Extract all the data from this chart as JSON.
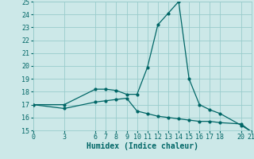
{
  "xlabel": "Humidex (Indice chaleur)",
  "background_color": "#cce8e8",
  "line_color": "#006666",
  "grid_color": "#99cccc",
  "xlim": [
    0,
    21
  ],
  "ylim": [
    15,
    25
  ],
  "yticks": [
    15,
    16,
    17,
    18,
    19,
    20,
    21,
    22,
    23,
    24,
    25
  ],
  "xticks": [
    0,
    3,
    6,
    7,
    8,
    9,
    10,
    11,
    12,
    13,
    14,
    15,
    16,
    17,
    18,
    20,
    21
  ],
  "series1_x": [
    0,
    3,
    6,
    7,
    8,
    9,
    10,
    11,
    12,
    13,
    14,
    15,
    16,
    17,
    18,
    20,
    21
  ],
  "series1_y": [
    17.0,
    17.0,
    18.2,
    18.2,
    18.1,
    17.8,
    17.8,
    19.9,
    23.2,
    24.1,
    25.0,
    19.0,
    17.0,
    16.6,
    16.3,
    15.4,
    14.9
  ],
  "series2_x": [
    0,
    3,
    6,
    7,
    8,
    9,
    10,
    11,
    12,
    13,
    14,
    15,
    16,
    17,
    18,
    20,
    21
  ],
  "series2_y": [
    17.0,
    16.7,
    17.2,
    17.3,
    17.4,
    17.5,
    16.5,
    16.3,
    16.1,
    16.0,
    15.9,
    15.8,
    15.7,
    15.7,
    15.6,
    15.5,
    14.9
  ],
  "marker": "o",
  "markersize": 2,
  "linewidth": 0.9,
  "font_family": "monospace",
  "tick_fontsize": 6,
  "label_fontsize": 7
}
